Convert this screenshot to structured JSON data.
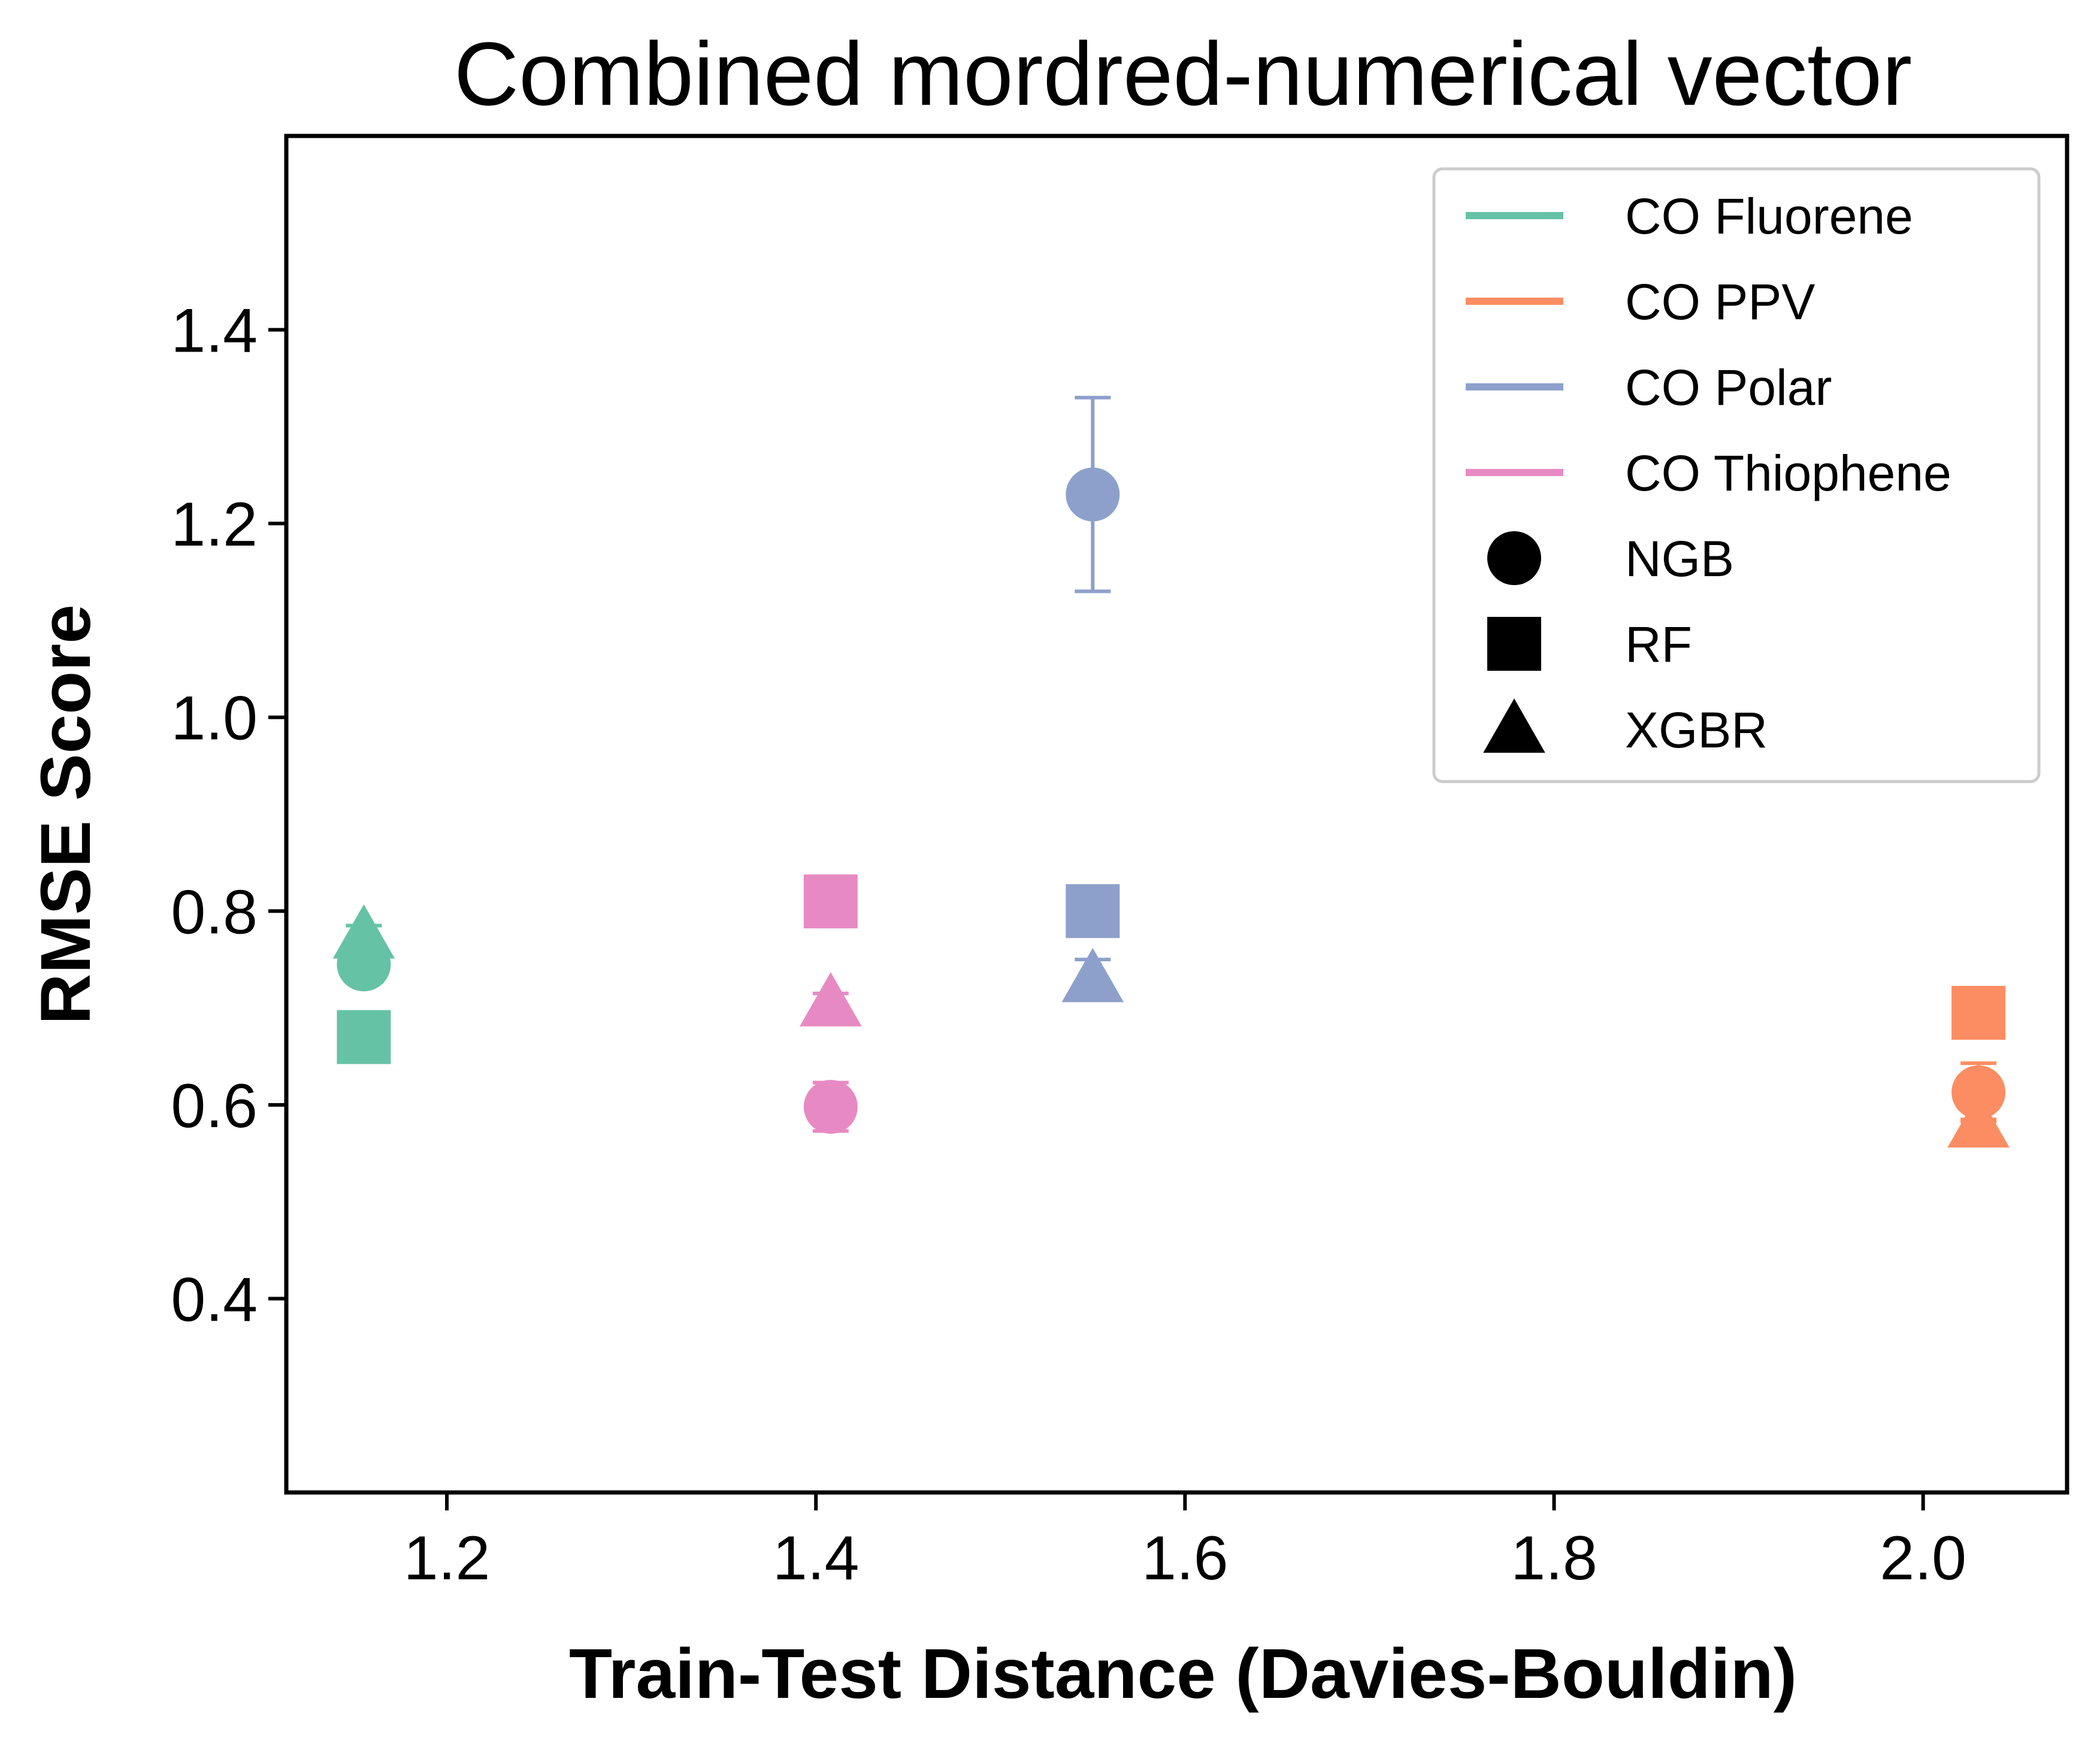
{
  "chart_data": {
    "type": "scatter",
    "title": "Combined mordred-numerical vector",
    "xlabel": "Train-Test Distance (Davies-Bouldin)",
    "ylabel": "RMSE Score",
    "xlim": [
      1.113,
      2.078
    ],
    "ylim": [
      0.2,
      1.6
    ],
    "xticks": [
      1.2,
      1.4,
      1.6,
      1.8,
      2.0
    ],
    "xtick_labels": [
      "1.2",
      "1.4",
      "1.6",
      "1.8",
      "2.0"
    ],
    "yticks": [
      0.4,
      0.6,
      0.8,
      1.0,
      1.2,
      1.4
    ],
    "ytick_labels": [
      "0.4",
      "0.6",
      "0.8",
      "1.0",
      "1.2",
      "1.4"
    ],
    "grid": false,
    "legend_position": "top-right",
    "series": [
      {
        "name": "CO Fluorene",
        "color": "#66c2a5",
        "x": 1.155,
        "points": [
          {
            "model": "NGB",
            "marker": "circle",
            "y": 0.745,
            "err": 0.01
          },
          {
            "model": "RF",
            "marker": "square",
            "y": 0.67,
            "err": 0.005
          },
          {
            "model": "XGBR",
            "marker": "triangle",
            "y": 0.775,
            "err": 0.01
          }
        ]
      },
      {
        "name": "CO PPV",
        "color": "#fc8d62",
        "x": 2.03,
        "points": [
          {
            "model": "NGB",
            "marker": "circle",
            "y": 0.613,
            "err": 0.03
          },
          {
            "model": "RF",
            "marker": "square",
            "y": 0.695,
            "err": 0.005
          },
          {
            "model": "XGBR",
            "marker": "triangle",
            "y": 0.58,
            "err": 0.005
          }
        ]
      },
      {
        "name": "CO Polar",
        "color": "#8da0cb",
        "x": 1.55,
        "points": [
          {
            "model": "NGB",
            "marker": "circle",
            "y": 1.23,
            "err": 0.1
          },
          {
            "model": "RF",
            "marker": "square",
            "y": 0.8,
            "err": 0.005
          },
          {
            "model": "XGBR",
            "marker": "triangle",
            "y": 0.73,
            "err": 0.02
          }
        ]
      },
      {
        "name": "CO Thiophene",
        "color": "#e78ac3",
        "x": 1.408,
        "points": [
          {
            "model": "NGB",
            "marker": "circle",
            "y": 0.598,
            "err": 0.025
          },
          {
            "model": "RF",
            "marker": "square",
            "y": 0.81,
            "err": 0.005
          },
          {
            "model": "XGBR",
            "marker": "triangle",
            "y": 0.705,
            "err": 0.01
          }
        ]
      }
    ],
    "legend": [
      {
        "label": "CO Fluorene",
        "kind": "line",
        "color": "#66c2a5"
      },
      {
        "label": "CO PPV",
        "kind": "line",
        "color": "#fc8d62"
      },
      {
        "label": "CO Polar",
        "kind": "line",
        "color": "#8da0cb"
      },
      {
        "label": "CO Thiophene",
        "kind": "line",
        "color": "#e78ac3"
      },
      {
        "label": "NGB",
        "kind": "circle",
        "color": "#000000"
      },
      {
        "label": "RF",
        "kind": "square",
        "color": "#000000"
      },
      {
        "label": "XGBR",
        "kind": "triangle",
        "color": "#000000"
      }
    ]
  }
}
